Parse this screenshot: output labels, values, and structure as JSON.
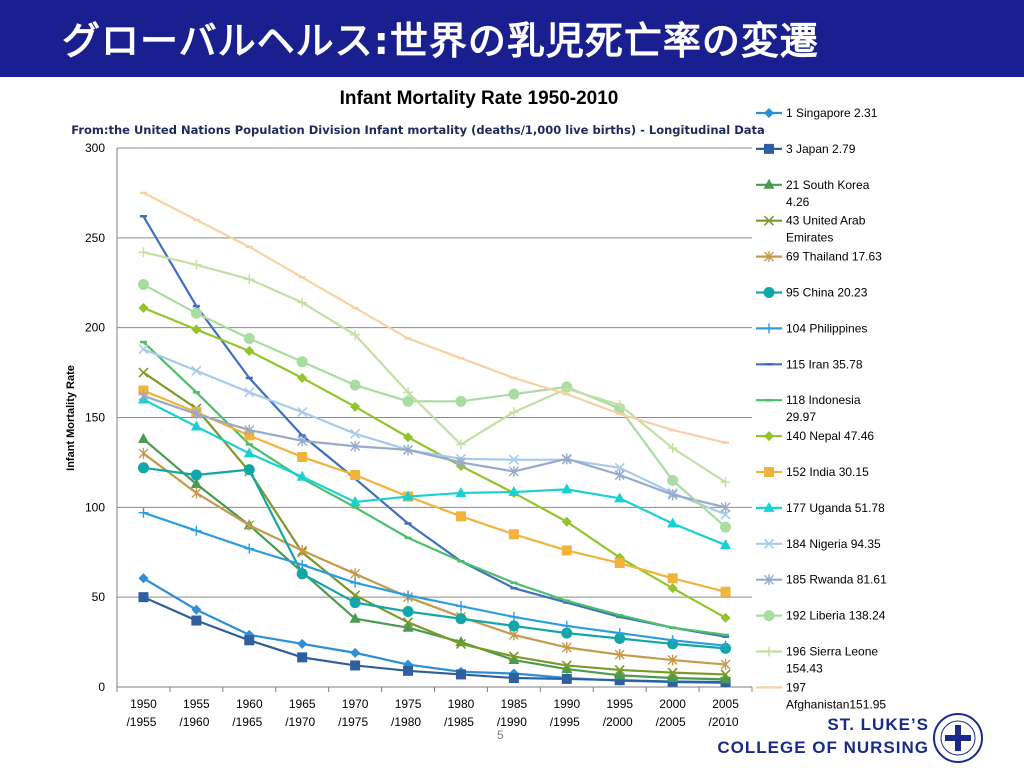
{
  "slide": {
    "title": "グローバルヘルス:世界の乳児死亡率の変遷",
    "page_number": "5",
    "brand_line1": "ST. LUKE’S",
    "brand_line2": "COLLEGE OF NURSING",
    "logo_name": "college-seal",
    "header_color": "#1a1f8f"
  },
  "chart_data": {
    "type": "line",
    "title": "Infant Mortality Rate  1950-2010",
    "subtitle": "From:the United Nations Population Division Infant mortality (deaths/1,000 live births) - Longitudinal Data",
    "xlabel": "",
    "ylabel": "Infant  Mortality Rate",
    "ylim": [
      0,
      300
    ],
    "yticks": [
      0,
      50,
      100,
      150,
      200,
      250,
      300
    ],
    "grid": true,
    "legend_position": "right",
    "categories": [
      [
        "1950",
        "/1955"
      ],
      [
        "1955",
        "/1960"
      ],
      [
        "1960",
        "/1965"
      ],
      [
        "1965",
        "/1970"
      ],
      [
        "1970",
        "/1975"
      ],
      [
        "1975",
        "/1980"
      ],
      [
        "1980",
        "/1985"
      ],
      [
        "1985",
        "/1990"
      ],
      [
        "1990",
        "/1995"
      ],
      [
        "1995",
        "/2000"
      ],
      [
        "2000",
        "/2005"
      ],
      [
        "2005",
        "/2010"
      ]
    ],
    "series": [
      {
        "name": "1 Singapore 2.31",
        "color": "#2e8fd6",
        "marker": "diamond",
        "values": [
          60.5,
          43,
          29,
          24,
          19,
          12.5,
          8.5,
          7.5,
          5,
          3.5,
          2.8,
          2.31
        ]
      },
      {
        "name": "3 Japan 2.79",
        "color": "#2f5f9e",
        "marker": "square",
        "values": [
          50,
          37,
          26,
          16.5,
          12,
          9,
          7,
          5,
          4.5,
          3.8,
          3,
          2.79
        ]
      },
      {
        "name": "21 South Korea 4.26",
        "color": "#4a9a4f",
        "marker": "triangle",
        "values": [
          138,
          113,
          90,
          64,
          38,
          33,
          25,
          15,
          10,
          6.5,
          5,
          4.26
        ]
      },
      {
        "name": "43 United Arab Emirates",
        "color": "#7b9a2a",
        "marker": "x",
        "values": [
          175,
          155,
          120,
          75,
          51,
          36,
          24,
          17,
          12,
          9.5,
          8,
          7
        ]
      },
      {
        "name": "69 Thailand 17.63",
        "color": "#c49a4c",
        "marker": "star",
        "values": [
          130,
          108,
          90,
          76,
          63,
          50,
          39,
          29,
          22,
          18,
          15,
          12.5
        ]
      },
      {
        "name": "95 China 20.23",
        "color": "#12a6a6",
        "marker": "circle",
        "values": [
          122,
          118,
          121,
          63,
          47,
          42,
          38,
          34,
          30,
          27,
          24,
          21.5
        ]
      },
      {
        "name": "104 Philippines",
        "color": "#2c9ee0",
        "marker": "plus",
        "values": [
          97,
          87,
          77,
          68,
          58,
          51,
          45,
          39,
          34,
          30,
          26,
          23
        ]
      },
      {
        "name": "115 Iran 35.78",
        "color": "#3f6fc0",
        "marker": "dash",
        "values": [
          262,
          212,
          172,
          140,
          116,
          91,
          70,
          55,
          47,
          39,
          33,
          28
        ]
      },
      {
        "name": "118 Indonesia 29.97",
        "color": "#4cbf6a",
        "marker": "dash",
        "values": [
          192,
          164,
          135,
          116,
          100,
          83,
          70,
          58,
          48,
          40,
          33,
          29
        ]
      },
      {
        "name": "140 Nepal 47.46",
        "color": "#93c42c",
        "marker": "diamond",
        "values": [
          211,
          199,
          187,
          172,
          156,
          139,
          123,
          108,
          92,
          72,
          55,
          38.5
        ]
      },
      {
        "name": "152 India 30.15",
        "color": "#f0b43c",
        "marker": "square",
        "values": [
          165,
          153,
          140,
          128,
          118,
          106,
          95,
          85,
          76,
          69,
          60.5,
          53
        ]
      },
      {
        "name": "177 Uganda 51.78",
        "color": "#19d1d1",
        "marker": "triangle",
        "values": [
          160,
          145,
          130,
          117,
          103,
          106,
          108,
          108.5,
          110,
          105,
          91,
          79
        ]
      },
      {
        "name": "184 Nigeria 94.35",
        "color": "#a9cbeb",
        "marker": "x",
        "values": [
          188,
          176,
          164,
          153,
          141,
          132,
          127,
          126.5,
          126.5,
          122,
          108,
          96
        ]
      },
      {
        "name": "185 Rwanda 81.61",
        "color": "#98aacc",
        "marker": "star",
        "values": [
          162,
          152,
          143,
          137,
          134,
          132,
          125,
          120,
          127,
          118,
          107,
          100
        ]
      },
      {
        "name": "192 Liberia 138.24",
        "color": "#a8dca0",
        "marker": "circle",
        "values": [
          224,
          208,
          194,
          181,
          168,
          159,
          159,
          163,
          167,
          155,
          115,
          89
        ]
      },
      {
        "name": "196 Sierra Leone 154.43",
        "color": "#c3dfa3",
        "marker": "plus",
        "values": [
          242,
          235,
          227,
          214,
          196,
          164,
          135,
          153,
          166,
          157,
          133,
          114
        ]
      },
      {
        "name": "197 Afghanistan151.95",
        "color": "#f7d2a6",
        "marker": "dash",
        "values": [
          275,
          260,
          245,
          228,
          211,
          194,
          183,
          172,
          163,
          152,
          143,
          136
        ]
      }
    ]
  }
}
